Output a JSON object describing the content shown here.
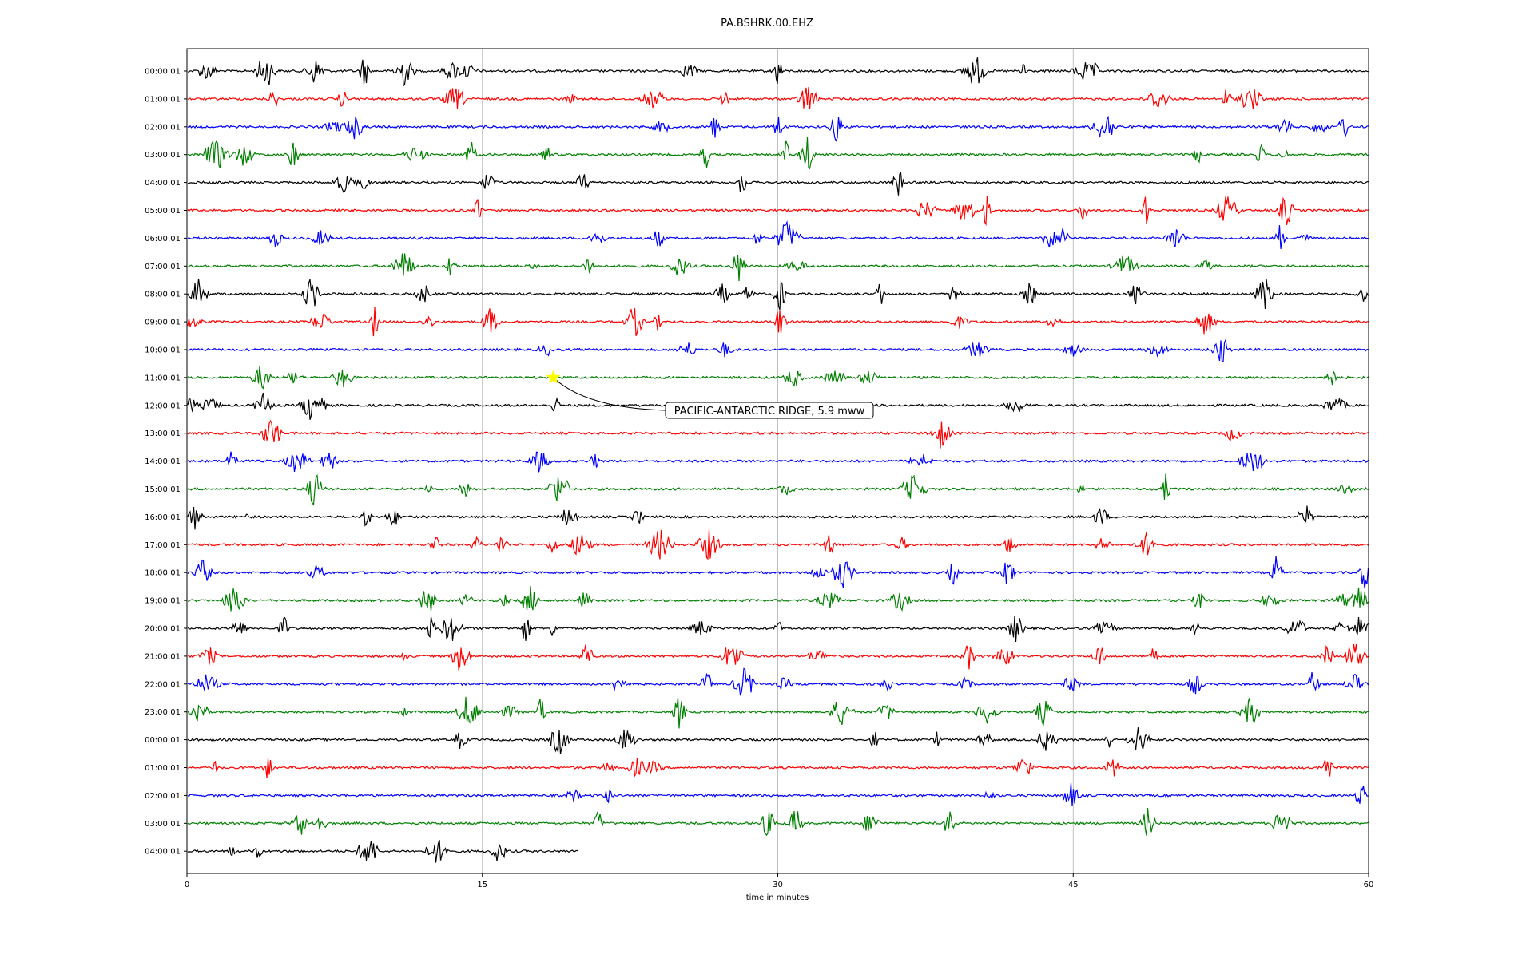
{
  "chart_data": {
    "type": "line",
    "title": "PA.BSHRK.00.EHZ",
    "xlabel": "time in minutes",
    "ylabel": "",
    "xlim": [
      0,
      60
    ],
    "xticks": [
      0,
      15,
      30,
      45,
      60
    ],
    "xtick_labels": [
      "0",
      "15",
      "30",
      "45",
      "60"
    ],
    "grid": "vertical",
    "row_labels": [
      "00:00:01",
      "01:00:01",
      "02:00:01",
      "03:00:01",
      "04:00:01",
      "05:00:01",
      "06:00:01",
      "07:00:01",
      "08:00:01",
      "09:00:01",
      "10:00:01",
      "11:00:01",
      "12:00:01",
      "13:00:01",
      "14:00:01",
      "15:00:01",
      "16:00:01",
      "17:00:01",
      "18:00:01",
      "19:00:01",
      "20:00:01",
      "21:00:01",
      "22:00:01",
      "23:00:01",
      "00:00:01",
      "01:00:01",
      "02:00:01",
      "03:00:01",
      "04:00:01"
    ],
    "row_colors": [
      "#000000",
      "#ff0000",
      "#0000ff",
      "#008000"
    ],
    "last_row_end_minute": 19.9,
    "bursts": [
      {
        "row": 0,
        "t": [
          1,
          4,
          6.5,
          9,
          11,
          13.5,
          14.2,
          25.5,
          30,
          40,
          42.5,
          45.5,
          46
        ]
      },
      {
        "row": 1,
        "t": [
          4.4,
          7.9,
          13.6,
          19.5,
          23.7,
          27.3,
          31.5,
          49.3,
          52.8,
          54
        ]
      },
      {
        "row": 2,
        "t": [
          7.5,
          8.5,
          24.1,
          26.8,
          30,
          33,
          46.6,
          55.7,
          57.5,
          58.7
        ]
      },
      {
        "row": 3,
        "t": [
          1.5,
          2.9,
          5.4,
          11.6,
          14.4,
          18.2,
          26.3,
          30.4,
          31.5,
          51.3,
          54.5,
          55.7
        ]
      },
      {
        "row": 4,
        "t": [
          8,
          9,
          15.3,
          20.1,
          28.2,
          36.1
        ]
      },
      {
        "row": 5,
        "t": [
          14.8,
          37.5,
          39.5,
          40.6,
          45.5,
          48.7,
          52.8,
          55.8
        ]
      },
      {
        "row": 6,
        "t": [
          4.5,
          6.8,
          20.8,
          23.9,
          29,
          30.5,
          43.8,
          44.5,
          50.2,
          55.5,
          56.7
        ]
      },
      {
        "row": 7,
        "t": [
          11,
          13.4,
          17.5,
          20.4,
          25,
          28,
          31,
          47.6,
          51.7
        ]
      },
      {
        "row": 8,
        "t": [
          0.6,
          6.3,
          12,
          27.2,
          28.5,
          30.1,
          35.2,
          39,
          42.8,
          48.2,
          54.7,
          59.8
        ]
      },
      {
        "row": 9,
        "t": [
          0.3,
          6.8,
          9.5,
          12.3,
          15.4,
          22.7,
          23.9,
          30.1,
          39.2,
          44,
          51.7
        ]
      },
      {
        "row": 10,
        "t": [
          18.3,
          25.4,
          27.3,
          40.1,
          45,
          49.3,
          52.5
        ]
      },
      {
        "row": 11,
        "t": [
          3.8,
          5.4,
          7.9,
          30.8,
          32.9,
          34.6,
          58
        ]
      },
      {
        "row": 12,
        "t": [
          0.2,
          1.2,
          3.9,
          6.4,
          18.7,
          42.1,
          58.3
        ]
      },
      {
        "row": 13,
        "t": [
          4.3,
          38.3,
          53.1
        ]
      },
      {
        "row": 14,
        "t": [
          2.3,
          5.6,
          7.2,
          17.9,
          20.7,
          37.3,
          54.1
        ]
      },
      {
        "row": 15,
        "t": [
          6.5,
          12.3,
          14.1,
          18.9,
          30.4,
          36.9,
          45.4,
          49.7,
          58.8
        ]
      },
      {
        "row": 16,
        "t": [
          0.4,
          3.1,
          9.1,
          10.5,
          19.3,
          22.9,
          46.4,
          56.8
        ]
      },
      {
        "row": 17,
        "t": [
          12.6,
          14.7,
          16,
          18.6,
          20,
          24,
          26.5,
          32.6,
          36.3,
          41.8,
          46.5,
          48.7
        ]
      },
      {
        "row": 18,
        "t": [
          0.8,
          6.6,
          32,
          33.3,
          38.9,
          41.7,
          55.3,
          59.8
        ]
      },
      {
        "row": 19,
        "t": [
          2.4,
          12.2,
          14.2,
          16.1,
          17.4,
          20.2,
          32.6,
          36.2,
          51.4,
          55,
          58.7,
          59.5
        ]
      },
      {
        "row": 20,
        "t": [
          2.6,
          4.9,
          12.4,
          13.4,
          17.2,
          18.6,
          26.1,
          30,
          42.1,
          46.6,
          51.2,
          56.3,
          58.5,
          59.5
        ]
      },
      {
        "row": 21,
        "t": [
          1.1,
          11,
          13.9,
          20.3,
          27.7,
          32,
          39.7,
          41.5,
          46.3,
          49.1,
          57.9,
          59.3
        ]
      },
      {
        "row": 22,
        "t": [
          1,
          22,
          26.4,
          28.3,
          30.3,
          35.5,
          39.5,
          44.9,
          51.2,
          57.2,
          59.3
        ]
      },
      {
        "row": 23,
        "t": [
          0.6,
          11,
          14.3,
          16.4,
          18,
          25,
          33.2,
          35.5,
          40.6,
          43.5,
          54
        ]
      },
      {
        "row": 24,
        "t": [
          13.9,
          18.9,
          22.3,
          34.9,
          38.1,
          40.5,
          43.7,
          46.8,
          48.3,
          48.7
        ]
      },
      {
        "row": 25,
        "t": [
          1.4,
          4.1,
          21.4,
          22.9,
          23.6,
          42.5,
          47,
          57.9
        ]
      },
      {
        "row": 26,
        "t": [
          19.6,
          21.4,
          40.7,
          44.9,
          59.6
        ]
      },
      {
        "row": 27,
        "t": [
          5.7,
          6.7,
          20.9,
          29.5,
          30.9,
          34.7,
          38.7,
          48.8,
          55.6
        ]
      },
      {
        "row": 28,
        "t": [
          2.3,
          3.6,
          9.2,
          12.7,
          15.8
        ]
      }
    ],
    "annotations": [
      {
        "text": "PACIFIC-ANTARCTIC RIDGE, 5.9 mww",
        "row": 11,
        "minute": 18.6,
        "marker": "star",
        "marker_color": "#ffff00"
      }
    ]
  }
}
